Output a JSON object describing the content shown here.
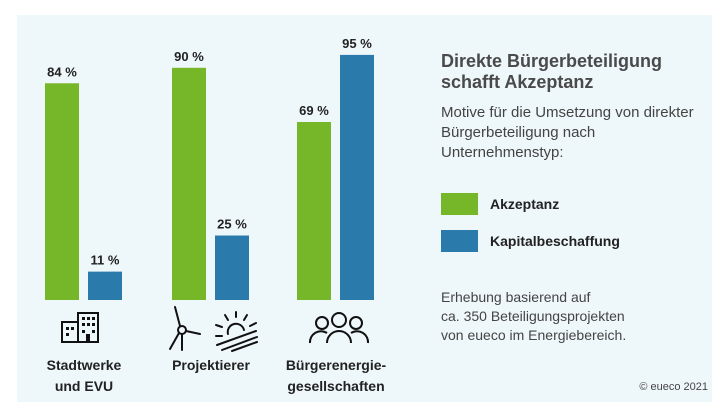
{
  "chart_data": {
    "type": "bar",
    "title": "Direkte Bürgerbeteiligung schafft Akzeptanz",
    "subtitle": "Motive für die Umsetzung von direkter Bürgerbeteiligung nach Unternehmenstyp:",
    "categories": [
      "Stadtwerke und EVU",
      "Projektierer",
      "Bürgerenergie-gesellschaften"
    ],
    "category_lines": [
      [
        "Stadtwerke",
        "und EVU"
      ],
      [
        "Projektierer"
      ],
      [
        "Bürgerenergie-",
        "gesellschaften"
      ]
    ],
    "category_icons": [
      "building-icon",
      "wind-solar-icon",
      "people-icon"
    ],
    "series": [
      {
        "name": "Akzeptanz",
        "values": [
          84,
          90,
          69
        ],
        "labels": [
          "84 %",
          "90 %",
          "69 %"
        ],
        "color": "#76b72a"
      },
      {
        "name": "Kapitalbeschaffung",
        "values": [
          11,
          25,
          95
        ],
        "labels": [
          "11 %",
          "25 %",
          "95 %"
        ],
        "color": "#2a7bab"
      }
    ],
    "ylim": [
      0,
      100
    ],
    "grid": false,
    "legend_position": "right"
  },
  "note": [
    "Erhebung basierend auf",
    "ca. 350 Beteiligungsprojekten",
    "von eueco im Energiebereich."
  ],
  "copyright": "© eueco 2021"
}
